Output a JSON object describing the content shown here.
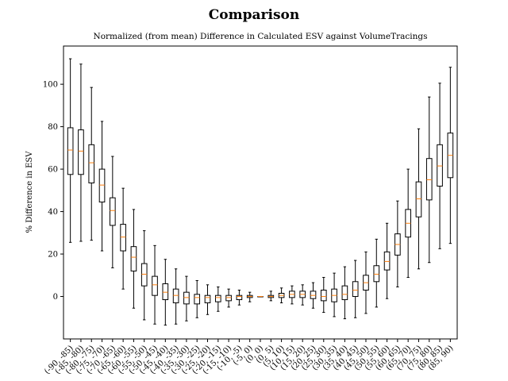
{
  "chart_data": {
    "type": "boxplot",
    "title": "Comparison",
    "subtitle": "Normalized (from mean) Difference in Calculated ESV against VolumeTracings",
    "ylabel": "% Difference in ESV",
    "xlabel": "",
    "ylim": [
      -20,
      118
    ],
    "yticks": [
      0,
      20,
      40,
      60,
      80,
      100
    ],
    "grid": false,
    "colors": {
      "box": "#000000",
      "median": "#ff7f0e"
    },
    "categories": [
      "(-90, -85)",
      "(-85, -80)",
      "(-80, -75)",
      "(-75, -70)",
      "(-70, -65)",
      "(-65, -60)",
      "(-60, -55)",
      "(-55, -50)",
      "(-50, -45)",
      "(-45, -40)",
      "(-40, -35)",
      "(-35, -30)",
      "(-30, -25)",
      "(-25, -20)",
      "(-20, -15)",
      "(-15, -10)",
      "(-10, -5)",
      "(-5, 0)",
      "(0, 0)",
      "(0, 5)",
      "(5, 10)",
      "(10, 15)",
      "(15, 20)",
      "(20, 25)",
      "(25, 30)",
      "(30, 35)",
      "(35, 40)",
      "(40, 45)",
      "(45, 50)",
      "(50, 55)",
      "(55, 60)",
      "(60, 65)",
      "(65, 70)",
      "(70, 75)",
      "(75, 80)",
      "(80, 85)",
      "(85, 90)"
    ],
    "boxes": [
      {
        "whislo": 25.5,
        "q1": 57.5,
        "med": 69,
        "q3": 79.5,
        "whishi": 112
      },
      {
        "whislo": 26,
        "q1": 57.5,
        "med": 68.5,
        "q3": 78.5,
        "whishi": 109.5
      },
      {
        "whislo": 26.5,
        "q1": 53.5,
        "med": 63,
        "q3": 71.5,
        "whishi": 98.5
      },
      {
        "whislo": 21.5,
        "q1": 44.5,
        "med": 52.5,
        "q3": 60,
        "whishi": 82.5
      },
      {
        "whislo": 13.5,
        "q1": 33.5,
        "med": 40.5,
        "q3": 46.5,
        "whishi": 66
      },
      {
        "whislo": 3.5,
        "q1": 21.5,
        "med": 28,
        "q3": 34,
        "whishi": 51
      },
      {
        "whislo": -5.5,
        "q1": 12,
        "med": 18.5,
        "q3": 23.5,
        "whishi": 41
      },
      {
        "whislo": -11,
        "q1": 5,
        "med": 10.5,
        "q3": 15.5,
        "whishi": 31
      },
      {
        "whislo": -13,
        "q1": 0.5,
        "med": 5.5,
        "q3": 9.5,
        "whishi": 24
      },
      {
        "whislo": -13.5,
        "q1": -1.5,
        "med": 2,
        "q3": 6,
        "whishi": 17.5
      },
      {
        "whislo": -13,
        "q1": -3,
        "med": 0.5,
        "q3": 3.5,
        "whishi": 13
      },
      {
        "whislo": -11.5,
        "q1": -3.5,
        "med": -0.5,
        "q3": 2,
        "whishi": 9.5
      },
      {
        "whislo": -10,
        "q1": -3.5,
        "med": -0.5,
        "q3": 1,
        "whishi": 7.5
      },
      {
        "whislo": -8.5,
        "q1": -3,
        "med": -0.5,
        "q3": 0.5,
        "whishi": 5.5
      },
      {
        "whislo": -7,
        "q1": -2.5,
        "med": -0.5,
        "q3": 0.5,
        "whishi": 4.5
      },
      {
        "whislo": -5,
        "q1": -2,
        "med": -0.5,
        "q3": 0.5,
        "whishi": 3.5
      },
      {
        "whislo": -4,
        "q1": -1.5,
        "med": 0,
        "q3": 0.5,
        "whishi": 3
      },
      {
        "whislo": -2.5,
        "q1": -0.5,
        "med": 0,
        "q3": 0.5,
        "whishi": 2
      },
      {
        "whislo": 0,
        "q1": 0,
        "med": 0,
        "q3": 0,
        "whishi": 0
      },
      {
        "whislo": -2,
        "q1": -0.5,
        "med": 0,
        "q3": 0.5,
        "whishi": 2.5
      },
      {
        "whislo": -3,
        "q1": -0.5,
        "med": 0.5,
        "q3": 1.5,
        "whishi": 4
      },
      {
        "whislo": -3.5,
        "q1": -0.5,
        "med": 1,
        "q3": 2.5,
        "whishi": 5
      },
      {
        "whislo": -4,
        "q1": -0.5,
        "med": 1,
        "q3": 2.5,
        "whishi": 5.5
      },
      {
        "whislo": -5.5,
        "q1": -1,
        "med": 0.5,
        "q3": 2.5,
        "whishi": 6.5
      },
      {
        "whislo": -7.5,
        "q1": -2,
        "med": 0,
        "q3": 3,
        "whishi": 9
      },
      {
        "whislo": -9.5,
        "q1": -2.5,
        "med": 0.5,
        "q3": 3.5,
        "whishi": 11
      },
      {
        "whislo": -10.5,
        "q1": -1.5,
        "med": 1,
        "q3": 5,
        "whishi": 14
      },
      {
        "whislo": -10,
        "q1": 0,
        "med": 3,
        "q3": 7,
        "whishi": 17
      },
      {
        "whislo": -8,
        "q1": 3,
        "med": 6.5,
        "q3": 10,
        "whishi": 21
      },
      {
        "whislo": -5,
        "q1": 7,
        "med": 10.5,
        "q3": 14.5,
        "whishi": 27
      },
      {
        "whislo": -1,
        "q1": 12.5,
        "med": 16.5,
        "q3": 21,
        "whishi": 34.5
      },
      {
        "whislo": 4.5,
        "q1": 19.5,
        "med": 24.5,
        "q3": 29.5,
        "whishi": 45
      },
      {
        "whislo": 9,
        "q1": 28,
        "med": 34.5,
        "q3": 41,
        "whishi": 60
      },
      {
        "whislo": 13,
        "q1": 37.5,
        "med": 46,
        "q3": 54,
        "whishi": 79
      },
      {
        "whislo": 16,
        "q1": 45.5,
        "med": 55,
        "q3": 65,
        "whishi": 94
      },
      {
        "whislo": 22.5,
        "q1": 52,
        "med": 61.5,
        "q3": 71.5,
        "whishi": 100.5
      },
      {
        "whislo": 25,
        "q1": 56,
        "med": 66.5,
        "q3": 77,
        "whishi": 108
      }
    ]
  }
}
